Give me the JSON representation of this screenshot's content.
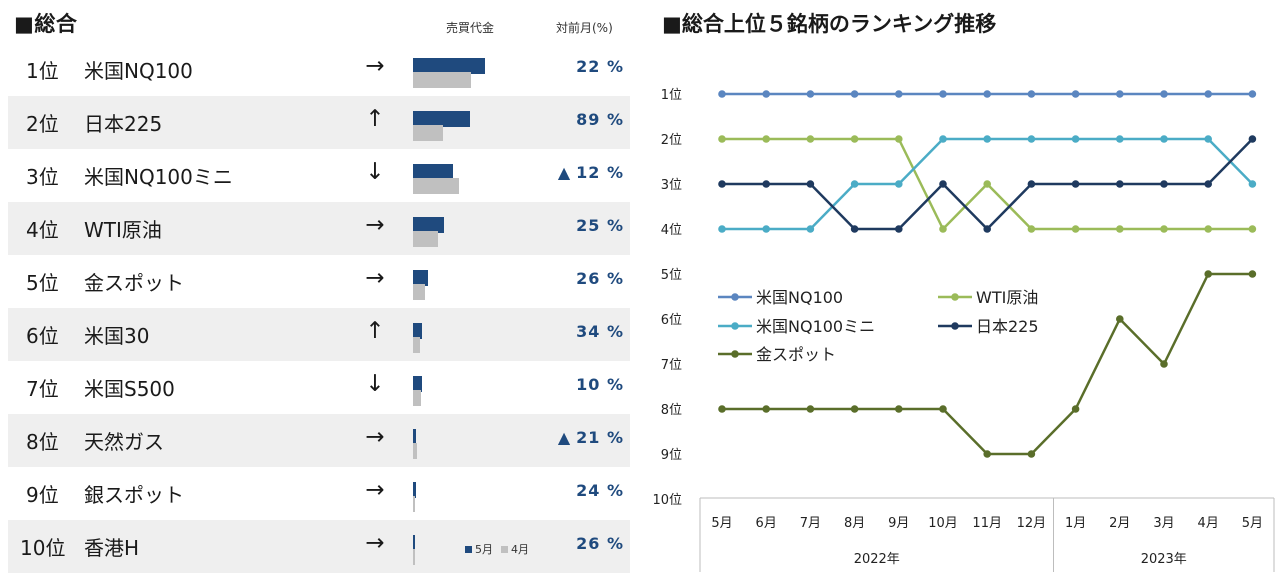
{
  "table": {
    "title": "■総合",
    "col_sales": "売買代金",
    "col_change": "対前月(%)",
    "legend": {
      "cur": "5月",
      "prev": "4月"
    },
    "rows": [
      {
        "rank": "1位",
        "name": "米国NQ100",
        "arrow": "→",
        "cur": 74,
        "prev": 60,
        "up_marker": "",
        "pct": "22 %"
      },
      {
        "rank": "2位",
        "name": "日本225",
        "arrow": "↑",
        "cur": 59,
        "prev": 31,
        "up_marker": "",
        "pct": "89 %"
      },
      {
        "rank": "3位",
        "name": "米国NQ100ミニ",
        "arrow": "↓",
        "cur": 41,
        "prev": 47,
        "up_marker": "▲",
        "pct": "12 %"
      },
      {
        "rank": "4位",
        "name": "WTI原油",
        "arrow": "→",
        "cur": 32,
        "prev": 26,
        "up_marker": "",
        "pct": "25 %"
      },
      {
        "rank": "5位",
        "name": "金スポット",
        "arrow": "→",
        "cur": 15,
        "prev": 12,
        "up_marker": "",
        "pct": "26 %"
      },
      {
        "rank": "6位",
        "name": "米国30",
        "arrow": "↑",
        "cur": 9,
        "prev": 7,
        "up_marker": "",
        "pct": "34 %"
      },
      {
        "rank": "7位",
        "name": "米国S500",
        "arrow": "↓",
        "cur": 9,
        "prev": 8,
        "up_marker": "",
        "pct": "10 %"
      },
      {
        "rank": "8位",
        "name": "天然ガス",
        "arrow": "→",
        "cur": 3,
        "prev": 4,
        "up_marker": "▲",
        "pct": "21 %"
      },
      {
        "rank": "9位",
        "name": "銀スポット",
        "arrow": "→",
        "cur": 3,
        "prev": 2,
        "up_marker": "",
        "pct": "24 %"
      },
      {
        "rank": "10位",
        "name": "香港H",
        "arrow": "→",
        "cur": 2,
        "prev": 2,
        "up_marker": "",
        "pct": "26 %"
      }
    ]
  },
  "chart_data": {
    "type": "line",
    "title": "■総合上位５銘柄のランキング推移",
    "categories": [
      "5月",
      "6月",
      "7月",
      "8月",
      "9月",
      "10月",
      "11月",
      "12月",
      "1月",
      "2月",
      "3月",
      "4月",
      "5月"
    ],
    "year_groups": [
      {
        "label": "2022年",
        "count": 8
      },
      {
        "label": "2023年",
        "count": 5
      }
    ],
    "y_ticks": [
      "1位",
      "2位",
      "3位",
      "4位",
      "5位",
      "6位",
      "7位",
      "8位",
      "9位",
      "10位"
    ],
    "ylim": [
      1,
      10
    ],
    "inverted": true,
    "series": [
      {
        "name": "米国NQ100",
        "color": "#5b86c0",
        "values": [
          1,
          1,
          1,
          1,
          1,
          1,
          1,
          1,
          1,
          1,
          1,
          1,
          1
        ]
      },
      {
        "name": "WTI原油",
        "color": "#9bbb59",
        "values": [
          2,
          2,
          2,
          2,
          2,
          4,
          3,
          4,
          4,
          4,
          4,
          4,
          4
        ]
      },
      {
        "name": "米国NQ100ミニ",
        "color": "#4bacc6",
        "values": [
          4,
          4,
          4,
          3,
          3,
          2,
          2,
          2,
          2,
          2,
          2,
          2,
          3
        ]
      },
      {
        "name": "日本225",
        "color": "#1f3a5f",
        "values": [
          3,
          3,
          3,
          4,
          4,
          3,
          4,
          3,
          3,
          3,
          3,
          3,
          2
        ]
      },
      {
        "name": "金スポット",
        "color": "#5a6e2a",
        "values": [
          8,
          8,
          8,
          8,
          8,
          8,
          9,
          9,
          8,
          6,
          7,
          5,
          5
        ]
      }
    ]
  }
}
